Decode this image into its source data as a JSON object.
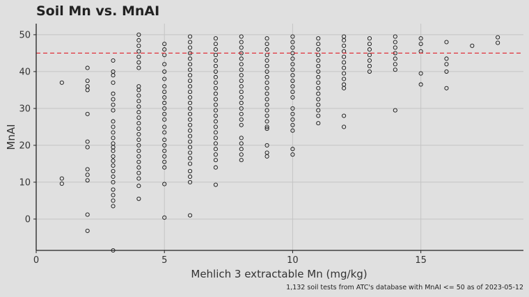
{
  "chart_data": {
    "type": "scatter",
    "title": "Soil Mn vs. MnAI",
    "xlabel": "Mehlich 3 extractable Mn (mg/kg)",
    "ylabel": "MnAI",
    "caption": "1,132 soil tests from ATC's database with MnAI <= 50 as of 2023-05-12",
    "xlim": [
      0,
      19
    ],
    "ylim": [
      -8.5,
      53
    ],
    "x_ticks": [
      0,
      5,
      10,
      15
    ],
    "y_ticks": [
      0,
      10,
      20,
      30,
      40,
      50
    ],
    "grid": true,
    "reference_line": {
      "y": 45,
      "color": "#e0303a",
      "style": "dashed"
    },
    "point_style": "open-circle",
    "series": [
      {
        "points_by_x": [
          {
            "x": 1,
            "y": [
              37,
              11,
              9.6
            ]
          },
          {
            "x": 2,
            "y": [
              41,
              37.5,
              36,
              35,
              28.5,
              21,
              19.5,
              13.5,
              12,
              10.5,
              1.2,
              -3.2
            ]
          },
          {
            "x": 3,
            "y": [
              43,
              40,
              39,
              37,
              34,
              32.5,
              31,
              29.5,
              26.5,
              25,
              23.5,
              22,
              20.5,
              19.5,
              18.5,
              17,
              15.8,
              14.5,
              13,
              11.5,
              10,
              8,
              6.5,
              5,
              3.5,
              -8.5
            ]
          },
          {
            "x": 4,
            "y": [
              50,
              48.5,
              47,
              45.5,
              44,
              42.5,
              41,
              36,
              35,
              33.5,
              32,
              30.5,
              29,
              27.5,
              26,
              24.5,
              23,
              21.5,
              20,
              18.5,
              17,
              15.5,
              14,
              12.5,
              11,
              9,
              5.5
            ]
          },
          {
            "x": 5,
            "y": [
              47.5,
              46,
              44.5,
              42,
              40,
              38,
              36,
              34.5,
              33,
              31.5,
              30,
              28.5,
              27,
              25,
              23.5,
              21.5,
              20,
              18.5,
              17,
              15.5,
              14,
              9.5,
              0.4
            ]
          },
          {
            "x": 6,
            "y": [
              49.5,
              48,
              46.5,
              45,
              43.5,
              42,
              40.5,
              39,
              37.5,
              36,
              34.5,
              33,
              31.5,
              30,
              28.5,
              27,
              25.5,
              24,
              22.5,
              21,
              19.5,
              18,
              16.5,
              15,
              13,
              11.5,
              10,
              1
            ]
          },
          {
            "x": 7,
            "y": [
              49,
              47.5,
              46,
              44.5,
              43,
              41.5,
              40,
              38.5,
              37,
              35.5,
              34,
              32.5,
              31,
              29.5,
              28,
              26.5,
              25,
              23.5,
              22,
              20.5,
              19,
              17.5,
              16,
              14,
              9.3
            ]
          },
          {
            "x": 8,
            "y": [
              49.5,
              48,
              46.5,
              45,
              43.5,
              42,
              40.5,
              39,
              37.5,
              36,
              34.5,
              33,
              31.5,
              30,
              28.5,
              27,
              25.5,
              22,
              20.5,
              19,
              17.5,
              16
            ]
          },
          {
            "x": 9,
            "y": [
              49,
              47.5,
              46,
              44.5,
              43,
              41.5,
              40,
              38.5,
              37,
              35.5,
              34,
              32.5,
              31,
              29.5,
              28,
              26.5,
              25,
              24.5,
              20,
              18,
              17
            ]
          },
          {
            "x": 10,
            "y": [
              49.5,
              48,
              46.5,
              45,
              43.5,
              42,
              40.5,
              39,
              37.5,
              36,
              34.5,
              33,
              30,
              28.5,
              27,
              25.5,
              24,
              19,
              17.5
            ]
          },
          {
            "x": 11,
            "y": [
              49,
              47.5,
              46,
              44.5,
              43,
              41.5,
              40,
              38.5,
              37,
              35.5,
              34,
              32.5,
              31,
              29.5,
              28,
              26
            ]
          },
          {
            "x": 12,
            "y": [
              49.5,
              48.5,
              47,
              45.5,
              44,
              42.5,
              41,
              39.5,
              38,
              36.5,
              35.5,
              28,
              25
            ]
          },
          {
            "x": 13,
            "y": [
              49,
              47.5,
              46,
              44.5,
              43,
              41.5,
              40
            ]
          },
          {
            "x": 14,
            "y": [
              49.5,
              48,
              46.5,
              45,
              43.5,
              42,
              40.5,
              29.5
            ]
          },
          {
            "x": 15,
            "y": [
              49,
              47.5,
              45.5,
              39.5,
              36.5
            ]
          },
          {
            "x": 16,
            "y": [
              48,
              43.5,
              42,
              40,
              35.5
            ]
          },
          {
            "x": 17,
            "y": [
              47
            ]
          },
          {
            "x": 18,
            "y": [
              49.3,
              47.8
            ]
          }
        ]
      }
    ]
  }
}
